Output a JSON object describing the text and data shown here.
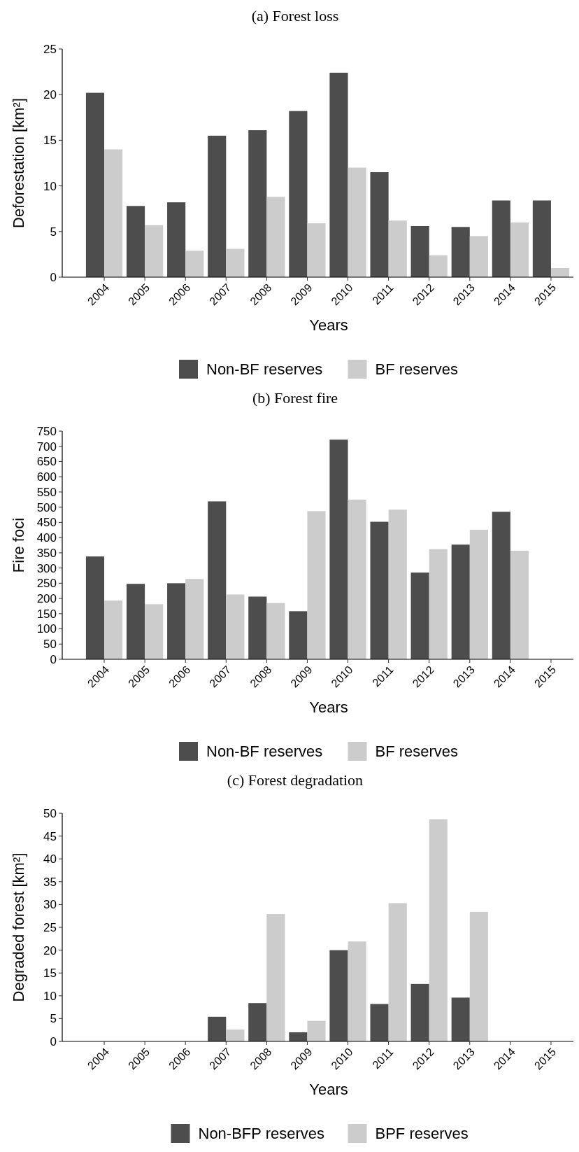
{
  "chart_data": [
    {
      "type": "bar",
      "title": "(a) Forest loss",
      "xlabel": "Years",
      "ylabel": "Deforestation [km²]",
      "categories": [
        "2004",
        "2005",
        "2006",
        "2007",
        "2008",
        "2009",
        "2010",
        "2011",
        "2012",
        "2013",
        "2014",
        "2015"
      ],
      "series": [
        {
          "name": "Non-BF reserves",
          "color": "#4d4d4d",
          "values": [
            20.2,
            7.8,
            8.2,
            15.5,
            16.1,
            18.2,
            22.4,
            11.5,
            5.6,
            5.5,
            8.4,
            8.4
          ]
        },
        {
          "name": "BF reserves",
          "color": "#cccccc",
          "values": [
            14.0,
            5.7,
            2.9,
            3.1,
            8.8,
            5.9,
            12.0,
            6.2,
            2.4,
            4.5,
            6.0,
            1.0
          ]
        }
      ],
      "ylim": [
        0,
        25
      ],
      "yticks": [
        0,
        5,
        10,
        15,
        20,
        25
      ],
      "legend": "bottom"
    },
    {
      "type": "bar",
      "title": "(b) Forest fire",
      "xlabel": "Years",
      "ylabel": "Fire foci",
      "categories": [
        "2004",
        "2005",
        "2006",
        "2007",
        "2008",
        "2009",
        "2010",
        "2011",
        "2012",
        "2013",
        "2014",
        "2015"
      ],
      "series": [
        {
          "name": "Non-BF reserves",
          "color": "#4d4d4d",
          "values": [
            338,
            248,
            250,
            519,
            206,
            158,
            722,
            452,
            285,
            377,
            485,
            null
          ]
        },
        {
          "name": "BF reserves",
          "color": "#cccccc",
          "values": [
            193,
            181,
            264,
            213,
            185,
            487,
            525,
            492,
            362,
            426,
            357,
            null
          ]
        }
      ],
      "ylim": [
        0,
        750
      ],
      "yticks": [
        0,
        50,
        100,
        150,
        200,
        250,
        300,
        350,
        400,
        450,
        500,
        550,
        600,
        650,
        700,
        750
      ],
      "legend": "bottom"
    },
    {
      "type": "bar",
      "title": "(c) Forest degradation",
      "xlabel": "Years",
      "ylabel": "Degraded forest [km²]",
      "categories": [
        "2004",
        "2005",
        "2006",
        "2007",
        "2008",
        "2009",
        "2010",
        "2011",
        "2012",
        "2013",
        "2014",
        "2015"
      ],
      "series": [
        {
          "name": "Non-BFP reserves",
          "color": "#4d4d4d",
          "values": [
            null,
            null,
            null,
            5.4,
            8.4,
            2.0,
            20.0,
            8.2,
            12.6,
            9.6,
            null,
            null
          ]
        },
        {
          "name": "BPF reserves",
          "color": "#cccccc",
          "values": [
            null,
            null,
            null,
            2.6,
            27.9,
            4.5,
            21.9,
            30.3,
            48.7,
            28.4,
            null,
            null
          ]
        }
      ],
      "ylim": [
        0,
        50
      ],
      "yticks": [
        0,
        5,
        10,
        15,
        20,
        25,
        30,
        35,
        40,
        45,
        50
      ],
      "legend": "bottom"
    }
  ]
}
